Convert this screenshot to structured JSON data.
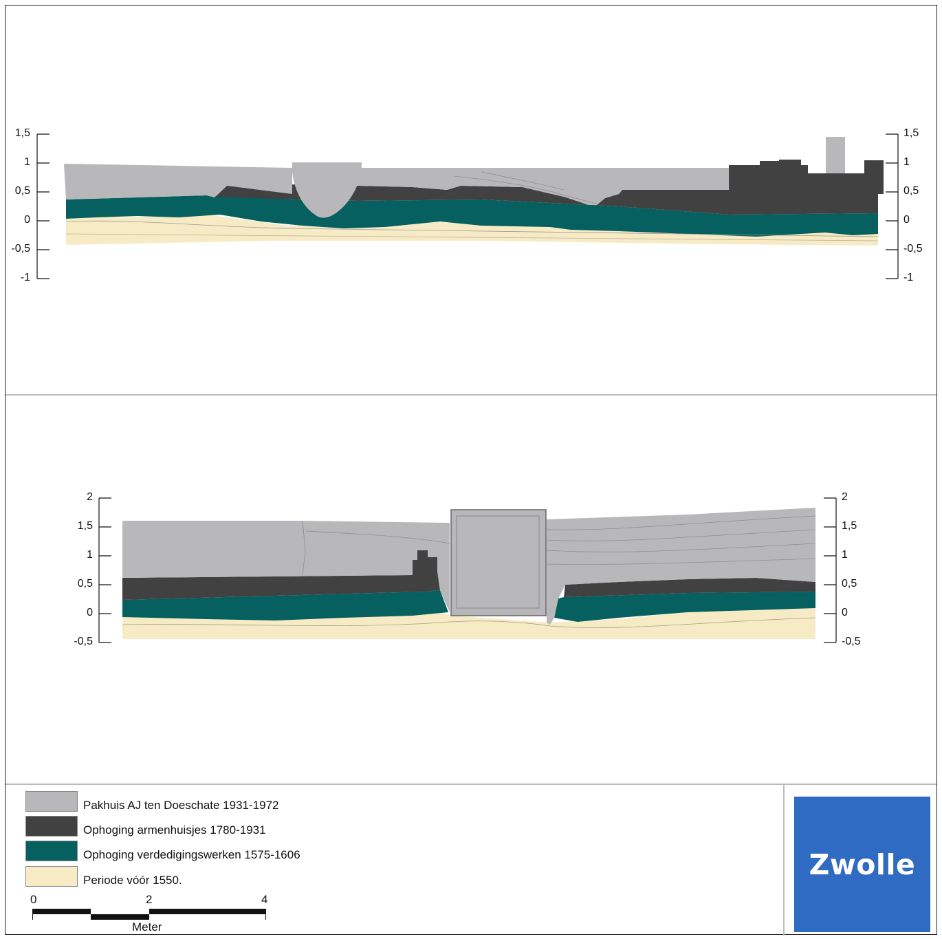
{
  "colors": {
    "pakhuis": "#b8b8ba",
    "armenhuisjes": "#414142",
    "verdediging": "#05605f",
    "periode": "#f7ebc5",
    "logo_blue": "#2f6bc2",
    "outline": "#777777"
  },
  "profile_top": {
    "axis_left_labels": [
      "1,5",
      "1",
      "0,5",
      "0",
      "-0,5",
      "-1"
    ],
    "axis_right_labels": [
      "1,5",
      "1",
      "0,5",
      "0",
      "-0,5",
      "-1"
    ]
  },
  "profile_bottom": {
    "axis_left_labels": [
      "2",
      "1,5",
      "1",
      "0,5",
      "0",
      "-0,5"
    ],
    "axis_right_labels": [
      "2",
      "1,5",
      "1",
      "0,5",
      "0",
      "-0,5"
    ]
  },
  "legend": {
    "items": [
      {
        "label": "Pakhuis AJ ten Doeschate 1931-1972",
        "color": "#b8b8ba"
      },
      {
        "label": "Ophoging armenhuisjes 1780-1931",
        "color": "#414142"
      },
      {
        "label": "Ophoging verdedigingswerken 1575-1606",
        "color": "#05605f"
      },
      {
        "label": "Periode vóór 1550.",
        "color": "#f7ebc5"
      }
    ]
  },
  "scalebar": {
    "ticks": [
      "0",
      "2",
      "4"
    ],
    "unit": "Meter"
  },
  "logo": {
    "text": "Zwolle"
  }
}
